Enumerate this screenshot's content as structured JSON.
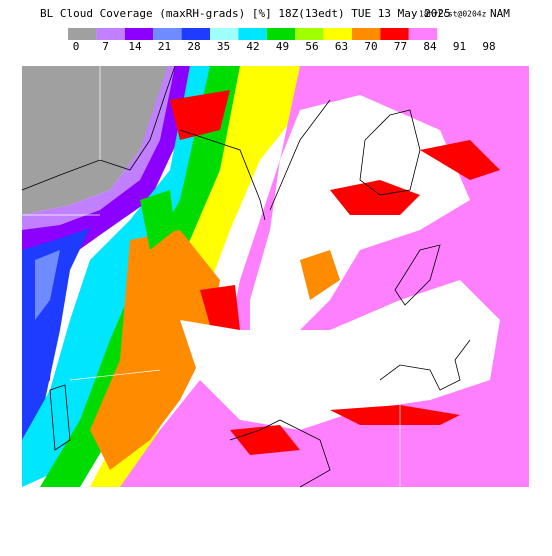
{
  "header": {
    "title": "BL Cloud Coverage (maxRH-grads) [%] 18Z(13edt) TUE 13 May 2025",
    "forecast": "18hrFcst@0204z",
    "model": "NAM"
  },
  "colorbar": {
    "items": [
      {
        "label": 0,
        "color": "#a0a0a0"
      },
      {
        "label": 7,
        "color": "#c080ff"
      },
      {
        "label": 14,
        "color": "#8c00ff"
      },
      {
        "label": 21,
        "color": "#6e8cff"
      },
      {
        "label": 28,
        "color": "#1e3cff"
      },
      {
        "label": 35,
        "color": "#a0ffff"
      },
      {
        "label": 42,
        "color": "#00e6ff"
      },
      {
        "label": 49,
        "color": "#00dc00"
      },
      {
        "label": 56,
        "color": "#a0ff00"
      },
      {
        "label": 63,
        "color": "#ffff00"
      },
      {
        "label": 70,
        "color": "#ff8c00"
      },
      {
        "label": 77,
        "color": "#ff0000"
      },
      {
        "label": 84,
        "color": "#ff80ff"
      },
      {
        "label": 91,
        "color": "#ffffff"
      },
      {
        "label": 98,
        "color": "#ffffff"
      }
    ]
  }
}
